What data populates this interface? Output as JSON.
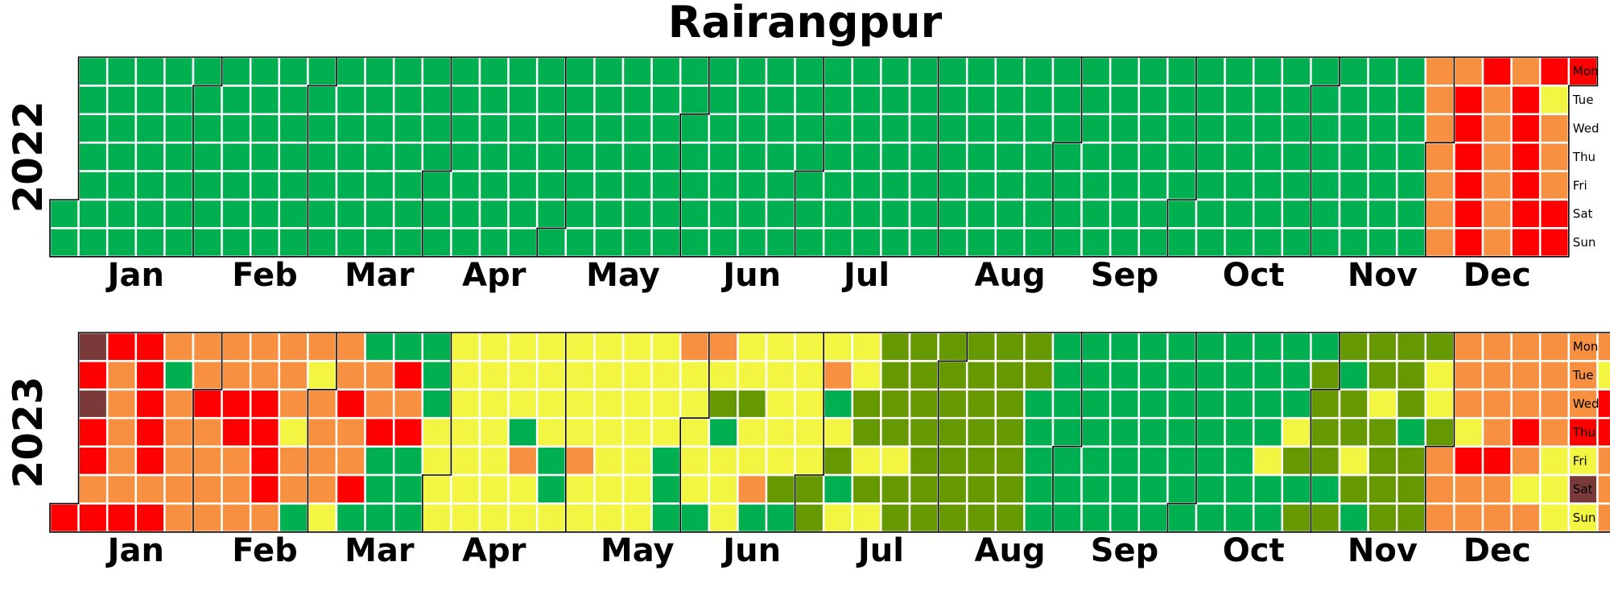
{
  "chart_data": {
    "type": "heatmap",
    "title": "Rairangpur",
    "weekday_labels": [
      "Mon",
      "Tue",
      "Wed",
      "Thu",
      "Fri",
      "Sat",
      "Sun"
    ],
    "month_labels": [
      "Jan",
      "Feb",
      "Mar",
      "Apr",
      "May",
      "Jun",
      "Jul",
      "Aug",
      "Sep",
      "Oct",
      "Nov",
      "Dec"
    ],
    "empty_color": "#f4f4f4",
    "palette": {
      "0": "#00b050",
      "1": "#669900",
      "2": "#f2f542",
      "3": "#f79141",
      "4": "#ff0000",
      "5": "#7b3a3a"
    },
    "calendars": [
      {
        "year": "2022",
        "first_day_column": 0,
        "first_day_row": 5,
        "days": "0000000000000000000000000000000000000000000000000000000000000000000000000000000000000000000000000000000000000000000000000000000000000000000000000000000000000000000000000000000000000000000000000000000000000000000000000000000000000000000000000000000000000000000000000000000000000000000000000000000000000000000000000000000000000000000333333334444444333333344444442333444"
      },
      {
        "year": "2023",
        "first_day_column": 0,
        "first_day_row": 6,
        "days": "45454434433333444444343033333334333333443333344443333233032333323343340033400004340000002222222222222222222220322222200222223222222222222222222220003222220321022222122302222210222221123021022211212111121111111111111111111111111111111100000000000000000000000000000000000000000000000000000000002000002101011110110112101121111111011112213333332433333343333343233333222333425232443332444533300024320033442243334344444"
      }
    ]
  }
}
